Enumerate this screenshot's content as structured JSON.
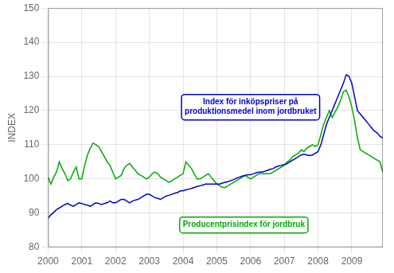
{
  "chart_data": {
    "type": "line",
    "ylabel": "INDEX",
    "xlim": [
      2000.0,
      2009.92
    ],
    "xticks": [
      2000,
      2001,
      2002,
      2003,
      2004,
      2005,
      2006,
      2007,
      2008,
      2009
    ],
    "ylim": [
      80,
      150
    ],
    "yticks": [
      80,
      90,
      100,
      110,
      120,
      130,
      140,
      150
    ],
    "grid": true,
    "x": [
      2000.0,
      2000.0833333333333,
      2000.1666666666667,
      2000.25,
      2000.3333333333333,
      2000.4166666666667,
      2000.5,
      2000.5833333333333,
      2000.6666666666667,
      2000.75,
      2000.8333333333333,
      2000.9166666666667,
      2001.0,
      2001.0833333333333,
      2001.1666666666667,
      2001.25,
      2001.3333333333333,
      2001.4166666666667,
      2001.5,
      2001.5833333333333,
      2001.6666666666667,
      2001.75,
      2001.8333333333333,
      2001.9166666666667,
      2002.0,
      2002.0833333333333,
      2002.1666666666667,
      2002.25,
      2002.3333333333333,
      2002.4166666666667,
      2002.5,
      2002.5833333333333,
      2002.6666666666667,
      2002.75,
      2002.8333333333333,
      2002.9166666666667,
      2003.0,
      2003.0833333333333,
      2003.1666666666667,
      2003.25,
      2003.3333333333333,
      2003.4166666666667,
      2003.5,
      2003.5833333333333,
      2003.6666666666667,
      2003.75,
      2003.8333333333333,
      2003.9166666666667,
      2004.0,
      2004.0833333333333,
      2004.1666666666667,
      2004.25,
      2004.3333333333333,
      2004.4166666666667,
      2004.5,
      2004.5833333333333,
      2004.6666666666667,
      2004.75,
      2004.8333333333333,
      2004.9166666666667,
      2005.0,
      2005.0833333333333,
      2005.1666666666667,
      2005.25,
      2005.3333333333333,
      2005.4166666666667,
      2005.5,
      2005.5833333333333,
      2005.6666666666667,
      2005.75,
      2005.8333333333333,
      2005.9166666666667,
      2006.0,
      2006.0833333333333,
      2006.1666666666667,
      2006.25,
      2006.3333333333333,
      2006.4166666666667,
      2006.5,
      2006.5833333333333,
      2006.6666666666667,
      2006.75,
      2006.8333333333333,
      2006.9166666666667,
      2007.0,
      2007.0833333333333,
      2007.1666666666667,
      2007.25,
      2007.3333333333333,
      2007.4166666666667,
      2007.5,
      2007.5833333333333,
      2007.6666666666667,
      2007.75,
      2007.8333333333333,
      2007.9166666666667,
      2008.0,
      2008.0833333333333,
      2008.1666666666667,
      2008.25,
      2008.3333333333333,
      2008.4166666666667,
      2008.5,
      2008.5833333333333,
      2008.6666666666667,
      2008.75,
      2008.8333333333333,
      2008.9166666666667,
      2009.0,
      2009.0833333333333,
      2009.1666666666667,
      2009.25,
      2009.3333333333333,
      2009.4166666666667,
      2009.5,
      2009.5833333333333,
      2009.6666666666667,
      2009.75,
      2009.8333333333333,
      2009.9166666666667
    ],
    "series": [
      {
        "color": "#0000CC",
        "values": [
          88.5,
          89.5,
          90.2,
          91.0,
          91.5,
          92.0,
          92.5,
          92.8,
          92.3,
          92.0,
          92.5,
          93.0,
          92.8,
          92.5,
          92.3,
          92.0,
          92.5,
          93.0,
          92.8,
          92.5,
          92.8,
          93.0,
          93.5,
          93.0,
          93.0,
          93.5,
          94.0,
          94.0,
          93.5,
          93.0,
          93.5,
          93.8,
          94.0,
          94.5,
          95.0,
          95.5,
          95.5,
          95.0,
          94.5,
          94.3,
          94.0,
          94.5,
          95.0,
          95.2,
          95.5,
          95.8,
          96.0,
          96.5,
          96.5,
          96.8,
          97.0,
          97.2,
          97.5,
          97.8,
          98.0,
          98.2,
          98.5,
          98.5,
          98.5,
          98.5,
          98.5,
          98.5,
          98.8,
          99.0,
          99.2,
          99.5,
          99.8,
          100.2,
          100.5,
          100.8,
          101.0,
          101.2,
          101.2,
          101.5,
          101.8,
          102.0,
          102.0,
          102.2,
          102.5,
          102.8,
          103.0,
          103.5,
          103.8,
          104.0,
          104.2,
          104.5,
          105.0,
          105.5,
          106.0,
          106.5,
          107.0,
          107.2,
          107.0,
          106.8,
          107.0,
          107.5,
          108.0,
          110.0,
          113.0,
          116.0,
          118.0,
          120.0,
          122.0,
          124.0,
          126.0,
          128.0,
          130.5,
          130.0,
          128.0,
          124.0,
          120.0,
          119.0,
          118.0,
          117.0,
          116.0,
          115.0,
          114.0,
          113.5,
          112.5,
          112.0
        ]
      },
      {
        "color": "#00AA00",
        "values": [
          100.5,
          98.5,
          100.5,
          102.0,
          105.0,
          103.0,
          101.5,
          99.5,
          100.0,
          102.0,
          103.5,
          100.0,
          100.0,
          104.0,
          107.0,
          109.0,
          110.5,
          110.0,
          109.5,
          108.0,
          106.5,
          105.0,
          104.0,
          102.0,
          100.0,
          100.5,
          101.0,
          103.0,
          104.0,
          104.5,
          103.5,
          102.5,
          101.5,
          101.0,
          100.5,
          100.0,
          100.5,
          101.5,
          102.0,
          101.5,
          100.5,
          100.0,
          99.5,
          99.0,
          99.5,
          100.0,
          100.5,
          101.0,
          101.5,
          105.0,
          104.0,
          103.0,
          101.5,
          100.0,
          100.0,
          100.5,
          101.0,
          101.5,
          100.5,
          99.5,
          98.5,
          98.0,
          97.5,
          97.5,
          98.0,
          98.5,
          99.0,
          99.5,
          100.0,
          100.5,
          101.0,
          100.5,
          100.0,
          100.5,
          101.0,
          101.5,
          101.5,
          101.5,
          101.5,
          101.5,
          102.0,
          102.5,
          103.0,
          103.5,
          104.0,
          105.0,
          105.5,
          106.5,
          107.0,
          107.5,
          108.5,
          108.0,
          109.0,
          109.5,
          110.0,
          109.5,
          110.0,
          113.0,
          116.0,
          118.0,
          120.0,
          118.0,
          119.5,
          121.0,
          123.0,
          125.5,
          126.0,
          124.0,
          121.0,
          117.0,
          112.0,
          108.5,
          108.0,
          107.5,
          107.0,
          106.5,
          106.0,
          105.5,
          105.0,
          102.0
        ]
      }
    ],
    "annotations": [
      {
        "text": "Index för inköpspriser på\nproduktionsmedel inom jordbruket",
        "x": 2006.0,
        "y": 121.0,
        "color": "#0000CC"
      },
      {
        "text": "Producentprisindex för jordbruk",
        "x": 2005.8,
        "y": 86.5,
        "color": "#00AA00"
      }
    ]
  }
}
